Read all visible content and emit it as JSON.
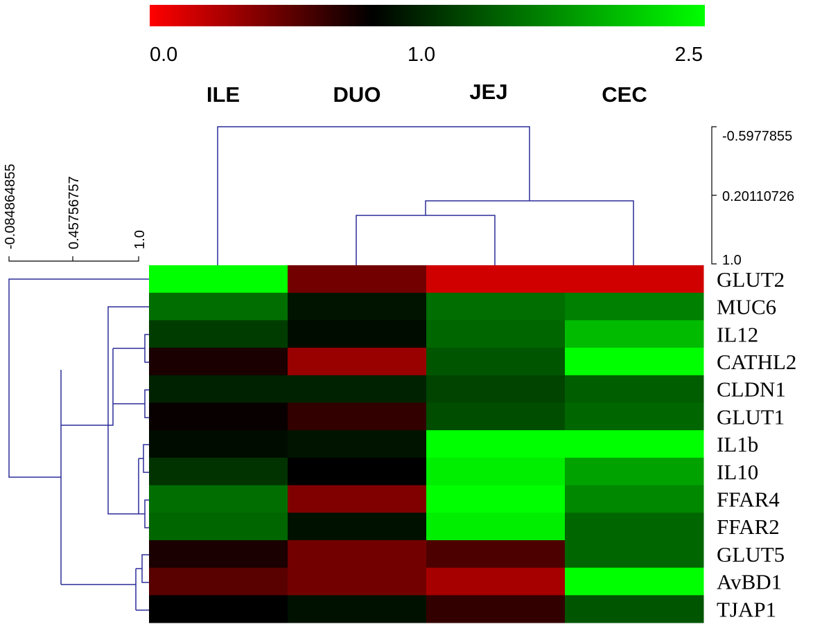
{
  "chart_data": {
    "type": "heatmap",
    "title": "",
    "columns": [
      "ILE",
      "DUO",
      "JEJ",
      "CEC"
    ],
    "rows": [
      "GLUT2",
      "MUC6",
      "IL12",
      "CATHL2",
      "CLDN1",
      "GLUT1",
      "IL1b",
      "IL10",
      "FFAR4",
      "FFAR2",
      "GLUT5",
      "AvBD1",
      "TJAP1"
    ],
    "values": [
      [
        2.5,
        0.55,
        0.18,
        0.18
      ],
      [
        1.65,
        1.12,
        1.65,
        1.75
      ],
      [
        1.35,
        1.07,
        1.6,
        2.1
      ],
      [
        0.9,
        0.4,
        1.5,
        2.5
      ],
      [
        1.2,
        1.2,
        1.4,
        1.55
      ],
      [
        0.97,
        0.8,
        1.45,
        1.6
      ],
      [
        1.07,
        1.12,
        2.5,
        2.5
      ],
      [
        1.3,
        1.0,
        2.4,
        1.95
      ],
      [
        1.65,
        0.5,
        2.5,
        1.8
      ],
      [
        1.6,
        1.1,
        2.4,
        1.6
      ],
      [
        0.9,
        0.55,
        0.7,
        1.6
      ],
      [
        0.65,
        0.55,
        0.35,
        2.5
      ],
      [
        1.0,
        1.1,
        0.8,
        1.5
      ]
    ],
    "color_scale": {
      "min": 0.0,
      "mid": 1.0,
      "max": 2.5,
      "min_color": "#ff0000",
      "mid_color": "#000000",
      "max_color": "#00ff00",
      "tick_labels": [
        "0.0",
        "1.0",
        "2.5"
      ]
    },
    "column_dendrogram": {
      "merges": [
        {
          "left": "JEJ",
          "right": "DUO",
          "height": 0.55
        },
        {
          "left": "cluster-1",
          "right": "CEC",
          "height": 0.42
        },
        {
          "left": "cluster-2",
          "right": "ILE",
          "height": -0.5977855
        }
      ],
      "scale_labels": [
        "-0.5977855",
        "0.20110726",
        "1.0"
      ],
      "scale_values": [
        -0.5977855,
        0.20110726,
        1.0
      ]
    },
    "row_dendrogram": {
      "scale_labels": [
        "-0.084864855",
        "0.45756757",
        "1.0"
      ],
      "scale_values": [
        -0.084864855,
        0.45756757,
        1.0
      ]
    },
    "colors": {
      "dendrogram": "#2b2b99"
    }
  }
}
